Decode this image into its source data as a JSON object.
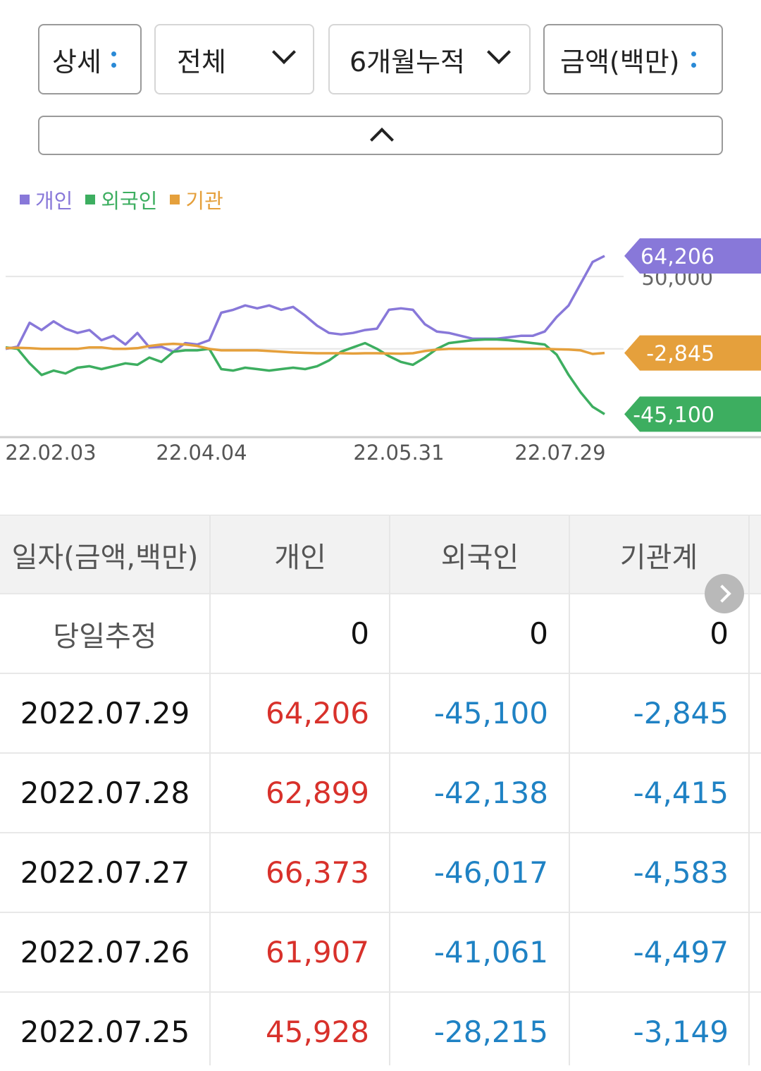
{
  "filters": {
    "mode": {
      "label": "상세"
    },
    "scope": {
      "label": "전체"
    },
    "period": {
      "label": "6개월누적"
    },
    "unit": {
      "label": "금액(백만)"
    }
  },
  "legend": [
    {
      "label": "개인",
      "color": "#8878d9"
    },
    {
      "label": "외국인",
      "color": "#3dae60"
    },
    {
      "label": "기관",
      "color": "#e5a03c"
    }
  ],
  "chart_data": {
    "type": "line",
    "y_tick_labels": [
      "50,000"
    ],
    "x_tick_labels": [
      "22.02.03",
      "22.04.04",
      "22.05.31",
      "22.07.29"
    ],
    "ylim": [
      -60000,
      90000
    ],
    "grid": true,
    "series": [
      {
        "name": "개인",
        "color": "#8878d9",
        "last_value_label": "64,206",
        "values": [
          0,
          1500,
          18000,
          13000,
          19000,
          14000,
          11000,
          13000,
          6000,
          9000,
          3000,
          11000,
          1000,
          1500,
          -2000,
          4000,
          3000,
          6000,
          25000,
          27000,
          30000,
          28000,
          30000,
          27000,
          29000,
          23000,
          16000,
          11000,
          10000,
          11000,
          13000,
          14000,
          27000,
          28000,
          27000,
          17000,
          12000,
          11000,
          9000,
          7000,
          7000,
          7000,
          8000,
          9000,
          9000,
          12000,
          22000,
          30000,
          45000,
          60000,
          64206
        ]
      },
      {
        "name": "외국인",
        "color": "#3dae60",
        "last_value_label": "-45,100",
        "values": [
          1000,
          0,
          -10000,
          -18000,
          -15000,
          -17000,
          -13000,
          -12000,
          -14000,
          -12000,
          -10000,
          -11000,
          -6000,
          -9000,
          -2000,
          -1000,
          -1000,
          0,
          -14000,
          -15000,
          -13000,
          -14000,
          -15000,
          -14000,
          -13000,
          -14000,
          -12000,
          -8000,
          -2000,
          1000,
          4000,
          0,
          -5000,
          -9000,
          -11000,
          -6000,
          0,
          4000,
          5000,
          6000,
          6500,
          6500,
          6000,
          5000,
          4000,
          3000,
          -4000,
          -18000,
          -30000,
          -40000,
          -45100
        ]
      },
      {
        "name": "기관",
        "color": "#e5a03c",
        "last_value_label": "-2,845",
        "values": [
          500,
          800,
          500,
          0,
          0,
          0,
          0,
          1000,
          1000,
          0,
          0,
          500,
          2000,
          3000,
          3500,
          3000,
          2000,
          0,
          -1000,
          -1000,
          -1000,
          -1000,
          -1500,
          -2000,
          -2500,
          -2800,
          -3000,
          -3000,
          -3000,
          -3200,
          -3000,
          -3000,
          -3200,
          -3300,
          -3000,
          -1500,
          -500,
          0,
          0,
          0,
          0,
          0,
          0,
          0,
          0,
          0,
          -300,
          -500,
          -1000,
          -3500,
          -2845
        ]
      }
    ]
  },
  "table": {
    "headers": [
      "일자(금액,백만)",
      "개인",
      "외국인",
      "기관계"
    ],
    "rows": [
      {
        "date": "당일추정",
        "ind": "0",
        "frn": "0",
        "inst": "0",
        "tone": [
          "zero",
          "zero",
          "zero"
        ]
      },
      {
        "date": "2022.07.29",
        "ind": "64,206",
        "frn": "-45,100",
        "inst": "-2,845",
        "tone": [
          "pos",
          "neg",
          "neg"
        ]
      },
      {
        "date": "2022.07.28",
        "ind": "62,899",
        "frn": "-42,138",
        "inst": "-4,415",
        "tone": [
          "pos",
          "neg",
          "neg"
        ]
      },
      {
        "date": "2022.07.27",
        "ind": "66,373",
        "frn": "-46,017",
        "inst": "-4,583",
        "tone": [
          "pos",
          "neg",
          "neg"
        ]
      },
      {
        "date": "2022.07.26",
        "ind": "61,907",
        "frn": "-41,061",
        "inst": "-4,497",
        "tone": [
          "pos",
          "neg",
          "neg"
        ]
      },
      {
        "date": "2022.07.25",
        "ind": "45,928",
        "frn": "-28,215",
        "inst": "-3,149",
        "tone": [
          "pos",
          "neg",
          "neg"
        ]
      }
    ]
  }
}
